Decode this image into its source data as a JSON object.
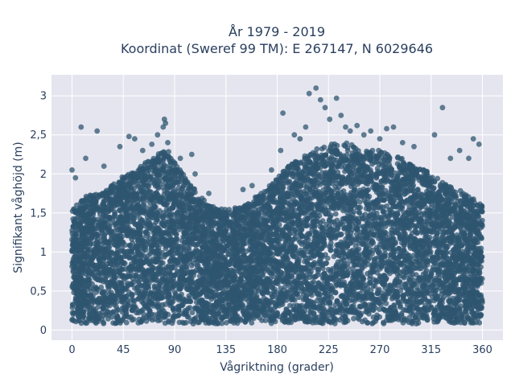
{
  "chart_data": {
    "type": "scatter",
    "title_line1": "År 1979 - 2019",
    "title_line2": "Koordinat (Sweref 99 TM): E 267147, N 6029646",
    "xlabel": "Vågriktning (grader)",
    "ylabel": "Signifikant våghöjd (m)",
    "xlim": [
      -18,
      378
    ],
    "ylim": [
      -0.13,
      3.27
    ],
    "x_ticks": [
      0,
      45,
      90,
      135,
      180,
      225,
      270,
      315,
      360
    ],
    "x_tick_labels": [
      "0",
      "45",
      "90",
      "135",
      "180",
      "225",
      "270",
      "315",
      "360"
    ],
    "y_ticks": [
      0,
      0.5,
      1,
      1.5,
      2,
      2.5,
      3
    ],
    "y_tick_labels": [
      "0",
      "0,5",
      "1",
      "1,5",
      "2",
      "2,5",
      "3"
    ],
    "grid": true,
    "legend": false,
    "marker_color": "#2f5670",
    "plot_background": "#e5e5ef",
    "envelope": {
      "x": [
        0,
        10,
        20,
        30,
        40,
        50,
        60,
        70,
        80,
        85,
        90,
        100,
        110,
        120,
        130,
        140,
        150,
        160,
        170,
        180,
        190,
        200,
        210,
        220,
        230,
        240,
        250,
        260,
        270,
        280,
        290,
        300,
        310,
        320,
        330,
        340,
        350,
        360
      ],
      "y_max": [
        1.55,
        1.7,
        1.75,
        1.8,
        1.95,
        2.0,
        2.1,
        2.2,
        2.3,
        2.3,
        2.15,
        1.95,
        1.75,
        1.6,
        1.55,
        1.55,
        1.6,
        1.7,
        1.8,
        1.95,
        2.1,
        2.2,
        2.3,
        2.35,
        2.4,
        2.4,
        2.35,
        2.3,
        2.3,
        2.25,
        2.2,
        2.1,
        2.05,
        1.95,
        1.85,
        1.8,
        1.7,
        1.6
      ]
    },
    "points": [
      {
        "x": 0,
        "y": 2.05
      },
      {
        "x": 3,
        "y": 1.95
      },
      {
        "x": 8,
        "y": 2.6
      },
      {
        "x": 12,
        "y": 2.2
      },
      {
        "x": 22,
        "y": 2.55
      },
      {
        "x": 28,
        "y": 2.1
      },
      {
        "x": 42,
        "y": 2.35
      },
      {
        "x": 50,
        "y": 2.48
      },
      {
        "x": 55,
        "y": 2.45
      },
      {
        "x": 62,
        "y": 2.3
      },
      {
        "x": 70,
        "y": 2.38
      },
      {
        "x": 75,
        "y": 2.5
      },
      {
        "x": 80,
        "y": 2.6
      },
      {
        "x": 81,
        "y": 2.7
      },
      {
        "x": 82,
        "y": 2.65
      },
      {
        "x": 84,
        "y": 2.4
      },
      {
        "x": 95,
        "y": 2.2
      },
      {
        "x": 105,
        "y": 2.25
      },
      {
        "x": 108,
        "y": 2.0
      },
      {
        "x": 120,
        "y": 1.75
      },
      {
        "x": 150,
        "y": 1.8
      },
      {
        "x": 158,
        "y": 1.85
      },
      {
        "x": 175,
        "y": 2.05
      },
      {
        "x": 183,
        "y": 2.3
      },
      {
        "x": 185,
        "y": 2.78
      },
      {
        "x": 195,
        "y": 2.5
      },
      {
        "x": 200,
        "y": 2.45
      },
      {
        "x": 205,
        "y": 2.6
      },
      {
        "x": 208,
        "y": 3.03
      },
      {
        "x": 214,
        "y": 3.1
      },
      {
        "x": 218,
        "y": 2.95
      },
      {
        "x": 222,
        "y": 2.85
      },
      {
        "x": 226,
        "y": 2.7
      },
      {
        "x": 232,
        "y": 2.97
      },
      {
        "x": 236,
        "y": 2.75
      },
      {
        "x": 240,
        "y": 2.6
      },
      {
        "x": 244,
        "y": 2.55
      },
      {
        "x": 250,
        "y": 2.62
      },
      {
        "x": 256,
        "y": 2.5
      },
      {
        "x": 262,
        "y": 2.55
      },
      {
        "x": 270,
        "y": 2.45
      },
      {
        "x": 276,
        "y": 2.58
      },
      {
        "x": 282,
        "y": 2.6
      },
      {
        "x": 290,
        "y": 2.4
      },
      {
        "x": 300,
        "y": 2.35
      },
      {
        "x": 318,
        "y": 2.5
      },
      {
        "x": 325,
        "y": 2.85
      },
      {
        "x": 332,
        "y": 2.2
      },
      {
        "x": 340,
        "y": 2.3
      },
      {
        "x": 348,
        "y": 2.2
      },
      {
        "x": 352,
        "y": 2.45
      },
      {
        "x": 357,
        "y": 2.38
      }
    ]
  }
}
